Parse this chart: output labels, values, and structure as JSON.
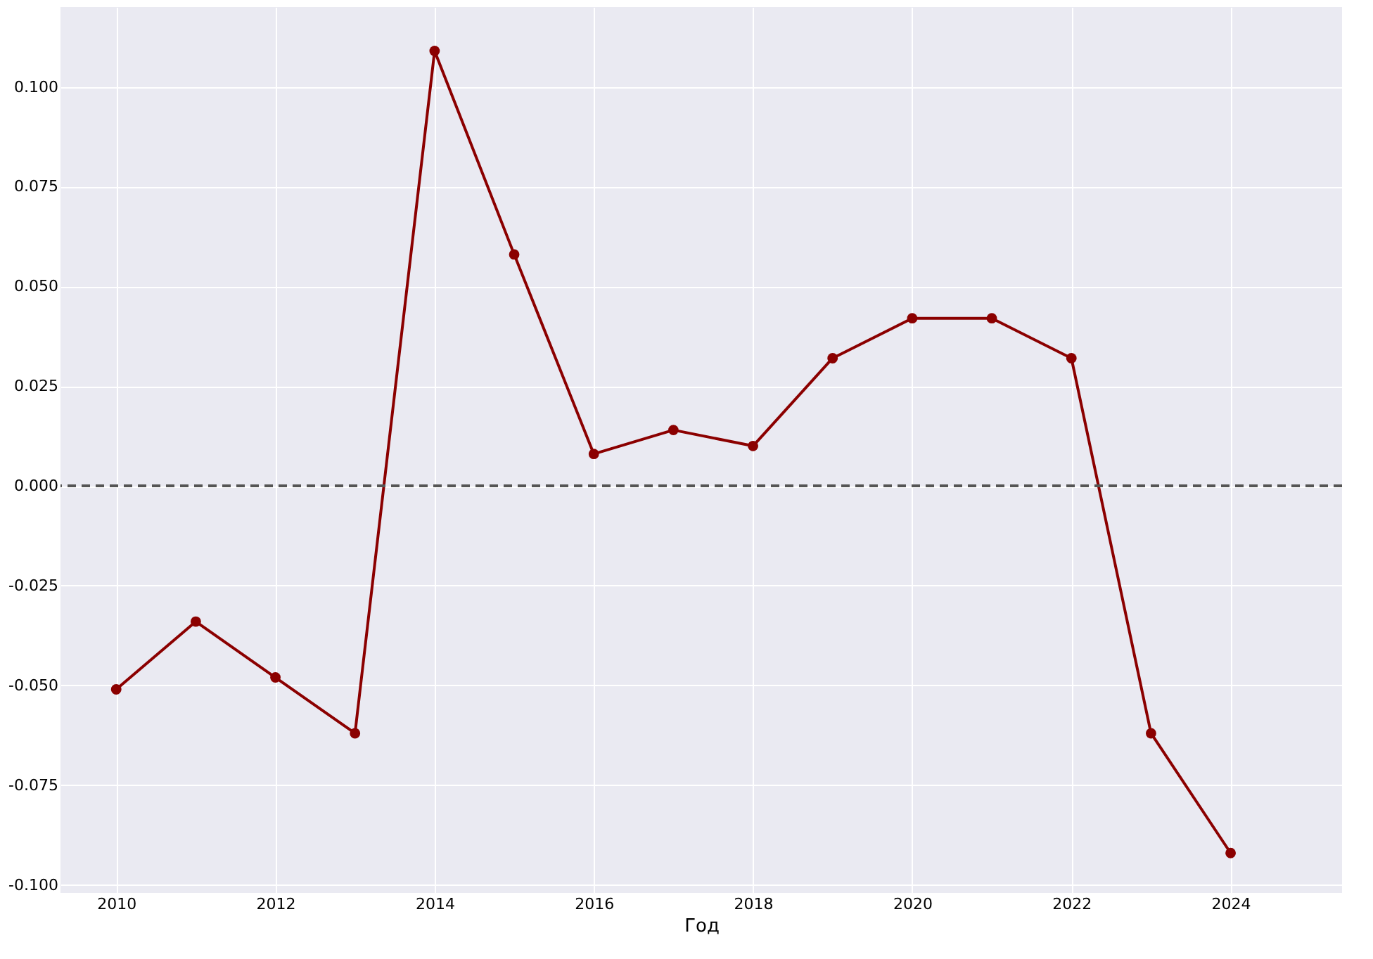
{
  "chart_data": {
    "type": "line",
    "xlabel": "Год",
    "x": [
      2010,
      2011,
      2012,
      2013,
      2014,
      2015,
      2016,
      2017,
      2018,
      2019,
      2020,
      2021,
      2022,
      2023,
      2024
    ],
    "series": [
      {
        "color": "#8b0000",
        "values": [
          -0.051,
          -0.034,
          -0.048,
          -0.062,
          0.109,
          0.058,
          0.008,
          0.014,
          0.01,
          0.032,
          0.042,
          0.042,
          0.032,
          -0.062,
          -0.092
        ]
      }
    ],
    "marker": "circle",
    "line_style": "solid",
    "grid": true,
    "xlim": [
      2009.3,
      2025.4
    ],
    "xticks": [
      2010,
      2012,
      2014,
      2016,
      2018,
      2020,
      2022,
      2024
    ],
    "ylim": [
      -0.102,
      0.12
    ],
    "yticks": [
      {
        "value": -0.1,
        "label": "-0.100"
      },
      {
        "value": -0.075,
        "label": "-0.075"
      },
      {
        "value": -0.05,
        "label": "-0.050"
      },
      {
        "value": -0.025,
        "label": "-0.025"
      },
      {
        "value": 0,
        "label": "0.000"
      },
      {
        "value": 0.025,
        "label": "0.025"
      },
      {
        "value": 0.05,
        "label": "0.050"
      },
      {
        "value": 0.075,
        "label": "0.075"
      },
      {
        "value": 0.1,
        "label": "0.100"
      }
    ],
    "ref_lines": [
      {
        "axis": "y",
        "value": 0,
        "color": "#555555",
        "line_style": "dashed"
      }
    ]
  }
}
